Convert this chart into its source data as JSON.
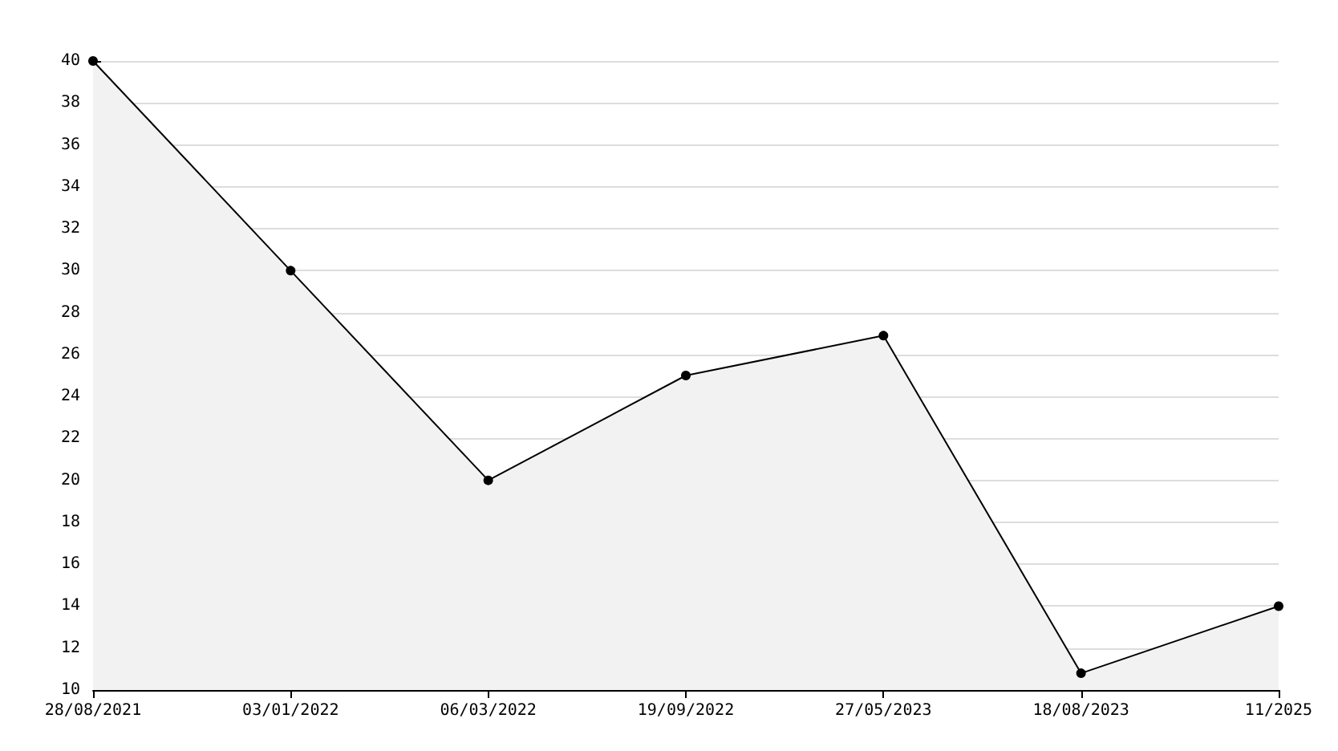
{
  "chart_data": {
    "type": "area",
    "categories": [
      "28/08/2021",
      "03/01/2022",
      "06/03/2022",
      "19/09/2022",
      "27/05/2023",
      "18/08/2023",
      "11/2025"
    ],
    "series": [
      {
        "color": "#000000",
        "values": [
          40,
          30,
          20,
          25,
          26.9,
          10.8,
          14
        ]
      }
    ],
    "ylim": [
      10,
      40
    ],
    "yticks": [
      10,
      12,
      14,
      16,
      18,
      20,
      22,
      24,
      26,
      28,
      30,
      32,
      34,
      36,
      38,
      40
    ],
    "grid": "y",
    "marker": "circle",
    "line_style": "solid"
  }
}
